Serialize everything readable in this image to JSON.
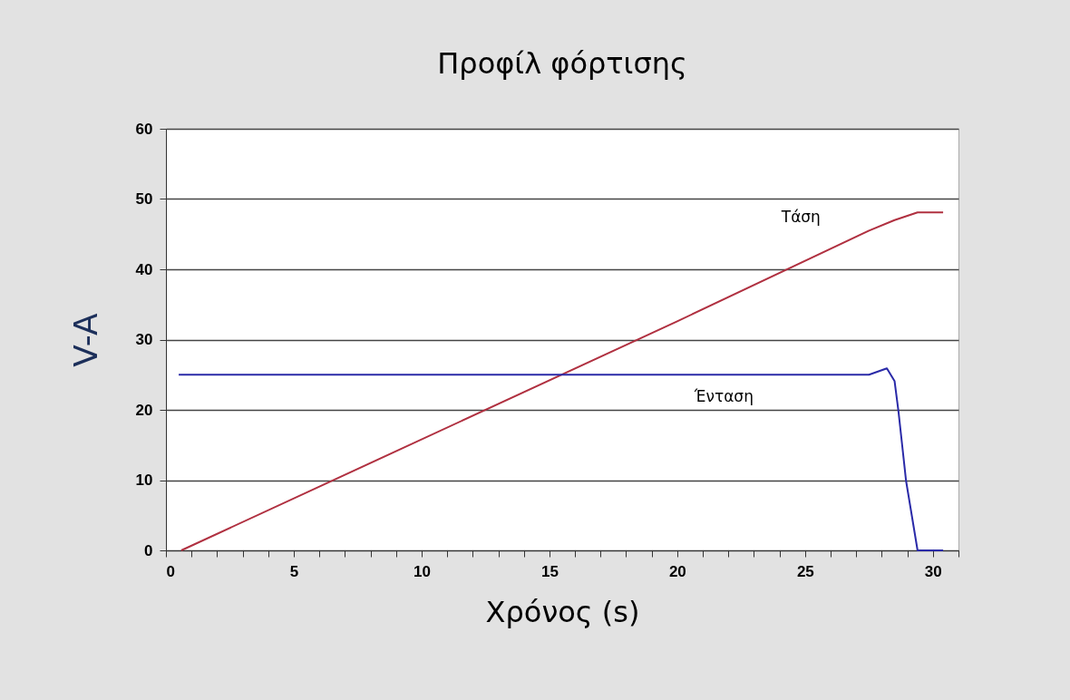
{
  "chart_data": {
    "type": "line",
    "title": "Προφίλ φόρτισης",
    "xlabel": "Χρόνος (s)",
    "ylabel": "V-A",
    "xlim": [
      0,
      31
    ],
    "ylim": [
      0,
      60
    ],
    "xticks": [
      0,
      {
        "value": 1,
        "label": null
      },
      {
        "value": 2,
        "label": null
      },
      {
        "value": 3,
        "label": null
      },
      {
        "value": 4,
        "label": null
      },
      5,
      {
        "value": 6,
        "label": null
      },
      {
        "value": 7,
        "label": null
      },
      {
        "value": 8,
        "label": null
      },
      {
        "value": 9,
        "label": null
      },
      10,
      {
        "value": 11,
        "label": null
      },
      {
        "value": 12,
        "label": null
      },
      {
        "value": 13,
        "label": null
      },
      {
        "value": 14,
        "label": null
      },
      15,
      {
        "value": 16,
        "label": null
      },
      {
        "value": 17,
        "label": null
      },
      {
        "value": 18,
        "label": null
      },
      {
        "value": 19,
        "label": null
      },
      20,
      {
        "value": 21,
        "label": null
      },
      {
        "value": 22,
        "label": null
      },
      {
        "value": 23,
        "label": null
      },
      {
        "value": 24,
        "label": null
      },
      25,
      {
        "value": 26,
        "label": null
      },
      {
        "value": 27,
        "label": null
      },
      {
        "value": 28,
        "label": null
      },
      {
        "value": 29,
        "label": null
      },
      30,
      {
        "value": 31,
        "label": null
      }
    ],
    "yticks": [
      0,
      10,
      20,
      30,
      40,
      50,
      60
    ],
    "grid": "y",
    "legend": false,
    "marker": "none",
    "line_style": "solid",
    "series": [
      {
        "name": "Τάση",
        "color": "#b03040",
        "x": [
          0.6,
          20,
          27.5,
          28.5,
          29.4,
          30.4
        ],
        "values": [
          0,
          32.6,
          45.5,
          47,
          48.1,
          48.1
        ]
      },
      {
        "name": "Ένταση",
        "color": "#2a2aa8",
        "x": [
          0.5,
          27.5,
          28.2,
          28.5,
          28.65,
          28.95,
          29.4,
          30.4
        ],
        "values": [
          25,
          25,
          25.9,
          24.1,
          19.9,
          9.9,
          0,
          0
        ]
      }
    ]
  }
}
